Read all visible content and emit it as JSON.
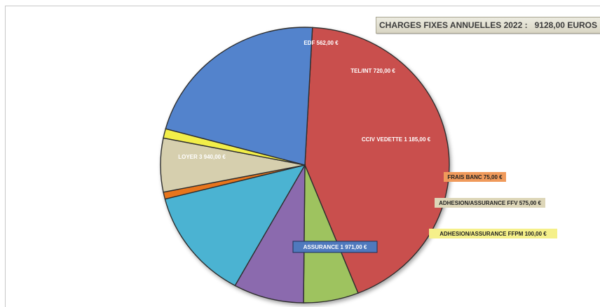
{
  "chart_data": {
    "type": "pie",
    "title": "CHARGES FIXES ANNUELLES 2022 :   9128,00 EUROS",
    "slices": [
      {
        "label": "LOYER",
        "value_text": "3 940,00 €",
        "value": 3940,
        "color": "#c9504e",
        "label_style": "inside"
      },
      {
        "label": "EDF",
        "value_text": "562,00 €",
        "value": 562,
        "color": "#9ec35f",
        "label_style": "inside"
      },
      {
        "label": "TEL/INT",
        "value_text": "720,00 €",
        "value": 720,
        "color": "#8b6bae",
        "label_style": "inside"
      },
      {
        "label": "CCIV VEDETTE",
        "value_text": "1 185,00 €",
        "value": 1185,
        "color": "#4bb3d2",
        "label_style": "inside"
      },
      {
        "label": "FRAIS BANC",
        "value_text": "75,00 €",
        "value": 75,
        "color": "#e8751f",
        "label_style": "callout",
        "box_color": "#f09a5b"
      },
      {
        "label": "ADHESION/ASSURANCE FFV",
        "value_text": "575,00 €",
        "value": 575,
        "color": "#d6cfae",
        "label_style": "callout",
        "box_color": "#ddd6b8"
      },
      {
        "label": "ADHESION/ASSURANCE FFPM",
        "value_text": "100,00 €",
        "value": 100,
        "color": "#f2ee4a",
        "label_style": "callout",
        "box_color": "#f5f08a"
      },
      {
        "label": "ASSURANCE",
        "value_text": "1 971,00 €",
        "value": 1971,
        "color": "#5283cc",
        "label_style": "boxed",
        "box_color": "#4f79bd"
      }
    ],
    "start_angle_deg": -87,
    "direction": "clockwise",
    "legend": "none"
  }
}
